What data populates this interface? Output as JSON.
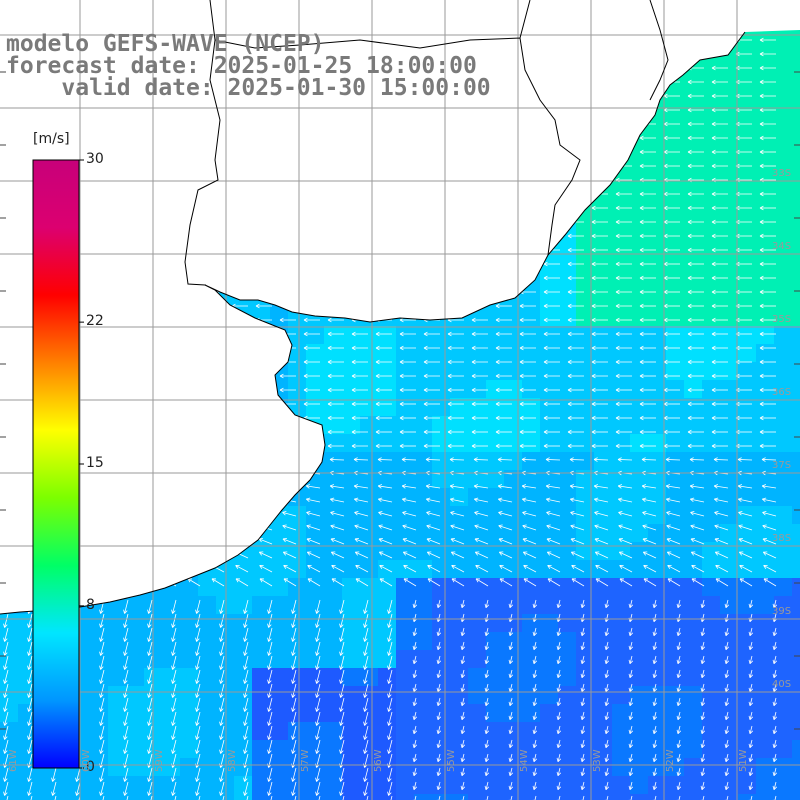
{
  "title": {
    "line1": "modelo GEFS-WAVE (NCEP)",
    "line2": "forecast date: 2025-01-25 18:00:00",
    "line3": "    valid date: 2025-01-30 15:00:00"
  },
  "colorbar": {
    "unit": "[m/s]",
    "ticks": [
      {
        "label": "30",
        "value": 30
      },
      {
        "label": "22",
        "value": 22
      },
      {
        "label": "15",
        "value": 15
      },
      {
        "label": "8",
        "value": 8
      },
      {
        "label": "0",
        "value": 0
      }
    ],
    "min": 0,
    "max": 30,
    "stops": [
      "#0000ff",
      "#0096ff",
      "#00e6ff",
      "#00ff66",
      "#7cff00",
      "#ffff00",
      "#ff8000",
      "#ff0000",
      "#dc0070",
      "#c8007a"
    ]
  },
  "grid": {
    "lat_labels": [
      "33S",
      "34S",
      "35S",
      "36S",
      "37S",
      "38S",
      "39S",
      "40S"
    ],
    "lon_labels": [
      "61W",
      "60W",
      "59W",
      "58W",
      "57W",
      "56W",
      "55W",
      "54W",
      "53W",
      "52W",
      "51W"
    ]
  },
  "colors": {
    "land": "#ffffff",
    "coast": "#000000",
    "gridline": "#9a9a9a",
    "ocean_base": "#00b4ff",
    "ocean_strong": "#00e0ff",
    "ocean_green": "#00f0b4",
    "ocean_weak": "#1e64ff",
    "arrow": "#ffffff"
  }
}
